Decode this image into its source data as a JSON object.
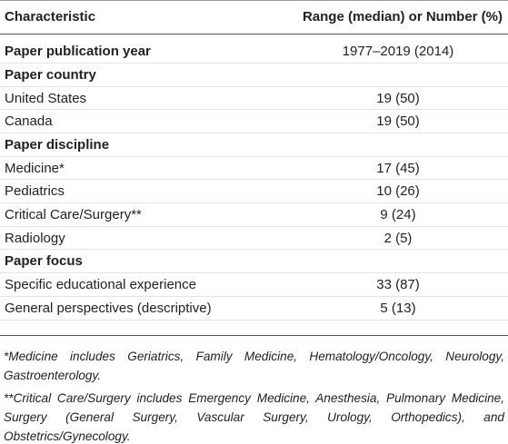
{
  "header": {
    "columns": [
      "Characteristic",
      "Range (median) or Number (%)"
    ]
  },
  "sections": [
    {
      "title": "Paper publication year",
      "value": "1977–2019 (2014)",
      "rows": []
    },
    {
      "title": "Paper country",
      "rows": [
        [
          "United States",
          "19 (50)"
        ],
        [
          "Canada",
          "19 (50)"
        ]
      ]
    },
    {
      "title": "Paper discipline",
      "rows": [
        [
          "Medicine*",
          "17 (45)"
        ],
        [
          "Pediatrics",
          "10 (26)"
        ],
        [
          "Critical Care/Surgery**",
          "9 (24)"
        ],
        [
          "Radiology",
          "2 (5)"
        ]
      ]
    },
    {
      "title": "Paper focus",
      "rows": [
        [
          "Specific educational experience",
          "33 (87)"
        ],
        [
          "General perspectives (descriptive)",
          "5 (13)"
        ]
      ]
    }
  ],
  "footnotes": [
    "*Medicine includes Geriatrics, Family Medicine, Hematology/Oncology, Neurology, Gastroenterology.",
    "**Critical Care/Surgery includes Emergency Medicine, Anesthesia, Pulmonary Medicine, Surgery (General Surgery, Vascular Surgery, Urology, Orthopedics), and Obstetrics/Gynecology."
  ]
}
